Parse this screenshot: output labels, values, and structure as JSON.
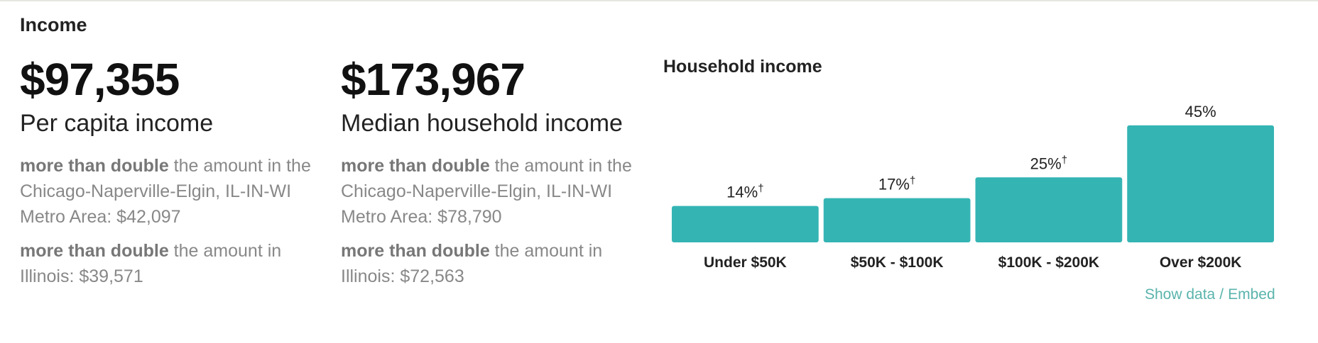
{
  "section": {
    "title": "Income"
  },
  "stats": [
    {
      "value": "$97,355",
      "label": "Per capita income",
      "comparisons": [
        {
          "emphasis": "more than double",
          "text": " the amount in the Chicago-Naperville-Elgin, IL-IN-WI Metro Area: $42,097"
        },
        {
          "emphasis": "more than double",
          "text": " the amount in Illinois: $39,571"
        }
      ]
    },
    {
      "value": "$173,967",
      "label": "Median household income",
      "comparisons": [
        {
          "emphasis": "more than double",
          "text": " the amount in the Chicago-Naperville-Elgin, IL-IN-WI Metro Area: $78,790"
        },
        {
          "emphasis": "more than double",
          "text": " the amount in Illinois: $72,563"
        }
      ]
    }
  ],
  "chart_data": {
    "type": "bar",
    "title": "Household income",
    "categories": [
      "Under $50K",
      "$50K - $100K",
      "$100K - $200K",
      "Over $200K"
    ],
    "values": [
      14,
      17,
      25,
      45
    ],
    "value_labels": [
      "14%",
      "17%",
      "25%",
      "45%"
    ],
    "value_markers": [
      "†",
      "†",
      "†",
      ""
    ],
    "color": "#35b4b4",
    "grid": false
  },
  "links": {
    "show_data": "Show data",
    "separator": "/",
    "embed": "Embed"
  },
  "colors": {
    "accent": "#35b4b4",
    "link": "#5ab4ac",
    "muted_text": "#888888"
  }
}
